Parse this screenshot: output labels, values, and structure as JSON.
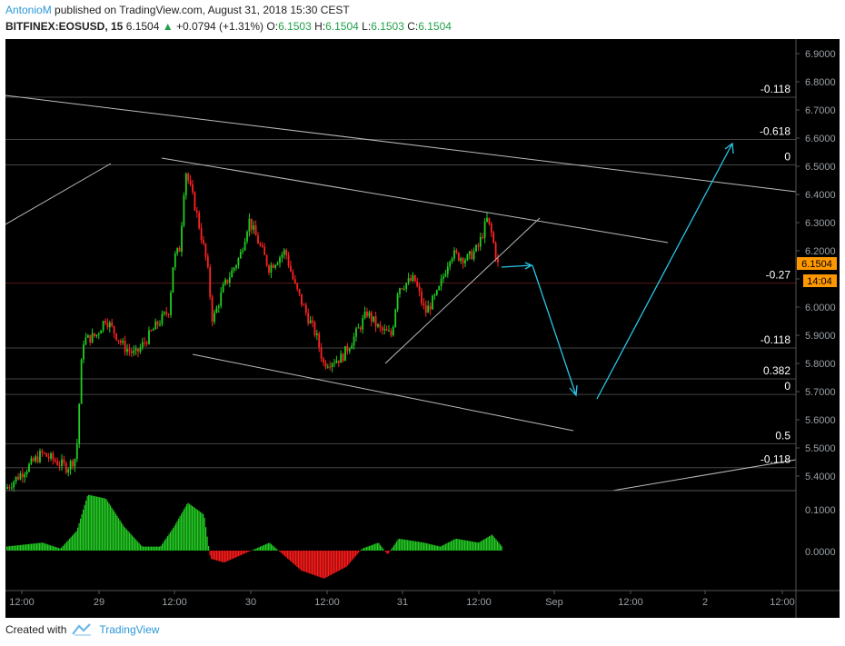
{
  "header": {
    "author": "AntonioM",
    "published_text": "published on TradingView.com, August 31, 2018 15:30 CEST",
    "symbol_text": "BITFINEX:EOSUSD, 15",
    "price": "6.1504",
    "change": "+0.0794 (+1.31%)",
    "o_label": "O:",
    "o_value": "6.1503",
    "h_label": "H:",
    "h_value": "6.1504",
    "l_label": "L:",
    "l_value": "6.1503",
    "c_label": "C:",
    "c_value": "6.1504"
  },
  "price_axis": {
    "ticks": [
      "6.9000",
      "6.8000",
      "6.7000",
      "6.6000",
      "6.5000",
      "6.4000",
      "6.3000",
      "6.2000",
      "6.1000",
      "6.0000",
      "5.9000",
      "5.8000",
      "5.7000",
      "5.6000",
      "5.5000",
      "5.4000"
    ],
    "last_price_label": "6.1504",
    "countdown_label": "14:04",
    "last_price_color": "#ff9800"
  },
  "fib_levels": [
    {
      "label": "-0.118",
      "price": 6.745,
      "color": "#ffffff"
    },
    {
      "label": "-0.618",
      "price": 6.595,
      "color": "#ffffff"
    },
    {
      "label": "0",
      "price": 6.505,
      "color": "#ffffff"
    },
    {
      "label": "-0.27",
      "price": 6.085,
      "color": "#ff3333"
    },
    {
      "label": "-0.118",
      "price": 5.855,
      "color": "#ffffff"
    },
    {
      "label": "0.382",
      "price": 5.745,
      "color": "#ffffff"
    },
    {
      "label": "0",
      "price": 5.69,
      "color": "#ffffff"
    },
    {
      "label": "0.5",
      "price": 5.515,
      "color": "#ffffff"
    },
    {
      "label": "-0.118",
      "price": 5.43,
      "color": "#ffffff"
    }
  ],
  "oscillator_axis": {
    "ticks": [
      "0.1000",
      "0.0000"
    ]
  },
  "time_axis": {
    "ticks": [
      "12:00",
      "29",
      "12:00",
      "30",
      "12:00",
      "31",
      "12:00",
      "Sep",
      "12:00",
      "2",
      "12:00"
    ]
  },
  "colors": {
    "background": "#000000",
    "candle_up": "#22cc22",
    "candle_down": "#ff2222",
    "trendline": "#bbbbbb",
    "projection": "#29c5e6"
  },
  "footer": {
    "created_with": "Created with",
    "brand": "TradingView"
  }
}
